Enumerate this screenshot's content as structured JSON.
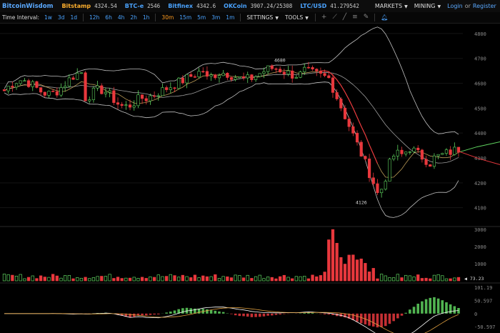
{
  "header": {
    "logo": "BitcoinWisdom",
    "exchanges": [
      {
        "name": "Bitstamp",
        "price": "4324.54",
        "color": "#ffb02e"
      },
      {
        "name": "BTC-e",
        "price": "2546",
        "color": "#4aa3ff"
      },
      {
        "name": "Bitfinex",
        "price": "4342.6",
        "color": "#4aa3ff"
      },
      {
        "name": "OKCoin",
        "price": "3907.24/25308",
        "color": "#4aa3ff"
      },
      {
        "name": "LTC/USD",
        "price": "41.279542",
        "color": "#4aa3ff"
      }
    ],
    "menus": [
      "MARKETS",
      "MINING"
    ],
    "login": "Login",
    "or": "or",
    "register": "Register"
  },
  "toolbar": {
    "time_interval_label": "Time Interval:",
    "intervals_a": [
      "1w",
      "3d",
      "1d"
    ],
    "intervals_b": [
      "12h",
      "6h",
      "4h",
      "2h",
      "1h"
    ],
    "intervals_c": [
      "30m",
      "15m",
      "5m",
      "3m",
      "1m"
    ],
    "active_interval": "30m",
    "settings": "SETTINGS",
    "tools": "TOOLS",
    "tool_icons": [
      "crosshair-icon",
      "line-tool-icon",
      "ray-tool-icon",
      "fib-tool-icon",
      "pen-tool-icon",
      "bell-icon"
    ]
  },
  "price_axis": {
    "ticks": [
      4800,
      4700,
      4600,
      4500,
      4400,
      4300,
      4200,
      4100
    ],
    "ylim": [
      4030,
      4840
    ],
    "annotations": [
      {
        "label": "4680",
        "value": 4680
      },
      {
        "label": "4126",
        "value": 4126
      }
    ],
    "last_price": "4324.54"
  },
  "volume_axis": {
    "ticks": [
      3000,
      2000,
      1000,
      0
    ],
    "ylim": [
      0,
      3050
    ],
    "last_label": "73.23"
  },
  "macd_axis": {
    "ticks": [
      "101.19",
      "50.597",
      "0",
      "-50.597"
    ],
    "ylim": [
      -75,
      110
    ]
  },
  "colors": {
    "up": "#5fd35f",
    "down": "#e8383d",
    "band": "#e0e0e0",
    "ma": "#e8c06c",
    "macd_line": "#ffffff",
    "macd_signal": "#e0a040",
    "last_price_line": "#5fd35f"
  }
}
